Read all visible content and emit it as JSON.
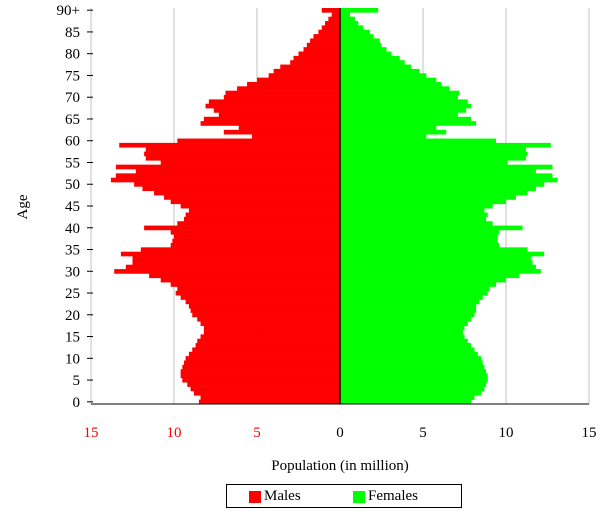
{
  "chart_data": {
    "type": "bar",
    "title": "",
    "xlabel": "Population (in million)",
    "ylabel": "Age",
    "xlim": [
      -15,
      15
    ],
    "x_ticks": [
      {
        "value": -15,
        "label": "15"
      },
      {
        "value": -10,
        "label": "10"
      },
      {
        "value": -5,
        "label": "5"
      },
      {
        "value": 0,
        "label": "0"
      },
      {
        "value": 5,
        "label": "5"
      },
      {
        "value": 10,
        "label": "10"
      },
      {
        "value": 15,
        "label": "15"
      }
    ],
    "y_ticks": [
      "0",
      "5",
      "10",
      "15",
      "20",
      "25",
      "30",
      "35",
      "40",
      "45",
      "50",
      "55",
      "60",
      "65",
      "70",
      "75",
      "80",
      "85",
      "90+"
    ],
    "grid": "vertical",
    "legend_position": "bottom",
    "colors": {
      "males": "#ff0000",
      "females": "#00ff00",
      "male_tick_labels": "#ff0000"
    },
    "series": [
      {
        "name": "Males",
        "color": "#ff0000",
        "values": [
          8.5,
          8.4,
          8.8,
          9.0,
          9.2,
          9.5,
          9.6,
          9.6,
          9.5,
          9.4,
          9.3,
          9.1,
          8.9,
          8.7,
          8.6,
          8.4,
          8.2,
          8.2,
          8.4,
          8.6,
          8.9,
          9.0,
          9.1,
          9.3,
          9.6,
          9.9,
          9.8,
          10.2,
          10.8,
          11.5,
          13.6,
          12.9,
          12.5,
          12.5,
          13.2,
          12.0,
          10.2,
          10.1,
          10.0,
          10.2,
          11.8,
          9.8,
          9.4,
          9.3,
          9.1,
          9.6,
          10.2,
          10.6,
          11.2,
          11.9,
          12.4,
          13.8,
          13.5,
          12.3,
          13.5,
          10.8,
          11.7,
          11.8,
          11.7,
          13.3,
          9.8,
          5.3,
          7.0,
          6.1,
          8.4,
          8.2,
          7.3,
          7.6,
          8.1,
          7.9,
          7.0,
          6.9,
          6.2,
          5.6,
          5.0,
          4.3,
          4.0,
          3.6,
          3.0,
          2.8,
          2.5,
          2.2,
          2.0,
          1.8,
          1.6,
          1.3,
          1.1,
          0.9,
          0.7,
          0.5,
          1.1
        ]
      },
      {
        "name": "Females",
        "color": "#00ff00",
        "values": [
          7.9,
          8.1,
          8.5,
          8.7,
          8.8,
          8.9,
          8.9,
          8.8,
          8.7,
          8.6,
          8.5,
          8.3,
          8.1,
          7.9,
          7.7,
          7.5,
          7.4,
          7.5,
          7.7,
          7.9,
          8.1,
          8.2,
          8.2,
          8.4,
          8.6,
          8.9,
          9.0,
          9.4,
          10.0,
          10.8,
          12.1,
          11.8,
          11.6,
          11.5,
          12.3,
          11.3,
          9.6,
          9.5,
          9.5,
          9.6,
          11.0,
          9.2,
          8.8,
          8.9,
          8.7,
          9.2,
          10.0,
          10.6,
          11.3,
          11.8,
          12.3,
          13.1,
          12.8,
          11.8,
          12.8,
          10.1,
          11.2,
          11.3,
          11.2,
          12.7,
          9.4,
          5.2,
          6.4,
          5.8,
          8.2,
          7.9,
          7.1,
          7.6,
          7.9,
          7.7,
          7.1,
          7.2,
          6.6,
          6.1,
          5.8,
          5.2,
          4.8,
          4.3,
          3.9,
          3.6,
          3.1,
          2.8,
          2.5,
          2.4,
          2.0,
          1.8,
          1.4,
          1.1,
          0.9,
          0.6,
          2.3
        ]
      }
    ]
  }
}
